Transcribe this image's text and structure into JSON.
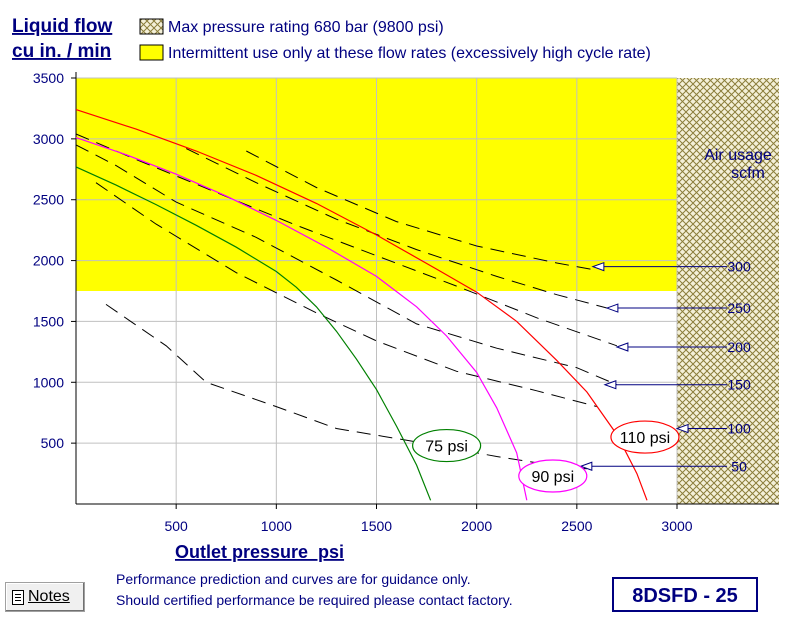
{
  "header": {
    "ylabel_line1": "Liquid flow",
    "ylabel_line2": "cu in. / min",
    "legend_hatch": "Max pressure rating 680 bar (9800 psi)",
    "legend_yellow": "Intermittent use only at these flow rates (excessively high cycle rate)"
  },
  "footer": {
    "xlabel": "Outlet pressure  psi",
    "note_line1": "Performance prediction and curves are for guidance only.",
    "note_line2": "Should certified performance be required please contact factory.",
    "model": "8DSFD - 25",
    "notes_button": "Notes"
  },
  "air_usage": {
    "label_line1": "Air usage",
    "label_line2": "scfm"
  },
  "colors": {
    "grid": "#c0c0c0",
    "yellow_zone": "#ffff00",
    "hatch": "#8b7d3a",
    "air_line": "#000080",
    "label_blue": "#000080",
    "curve_75": "#008000",
    "curve_90": "#ff00ff",
    "curve_110": "#ff0000",
    "dashed": "#000000"
  },
  "chart_data": {
    "type": "line",
    "xlim": [
      0,
      3500
    ],
    "ylim": [
      0,
      3500
    ],
    "x_ticks": [
      500,
      1000,
      1500,
      2000,
      2500,
      3000
    ],
    "y_ticks": [
      500,
      1000,
      1500,
      2000,
      2500,
      3000,
      3500
    ],
    "grid": true,
    "intermittent_zone": {
      "y_min": 1750,
      "y_max": 3500,
      "x_max": 3000
    },
    "max_pressure_zone": {
      "x_min": 3000,
      "x_max": 3500
    },
    "air_pressure_curves": [
      {
        "name": "75 psi",
        "color": "#008000",
        "label_at": [
          1850,
          480
        ],
        "points": [
          [
            0,
            2770
          ],
          [
            200,
            2620
          ],
          [
            400,
            2460
          ],
          [
            600,
            2290
          ],
          [
            800,
            2110
          ],
          [
            1000,
            1910
          ],
          [
            1100,
            1780
          ],
          [
            1200,
            1620
          ],
          [
            1300,
            1420
          ],
          [
            1400,
            1190
          ],
          [
            1500,
            940
          ],
          [
            1600,
            640
          ],
          [
            1700,
            320
          ],
          [
            1770,
            30
          ]
        ]
      },
      {
        "name": "90 psi",
        "color": "#ff00ff",
        "label_at": [
          2380,
          230
        ],
        "points": [
          [
            0,
            3010
          ],
          [
            250,
            2870
          ],
          [
            500,
            2710
          ],
          [
            750,
            2530
          ],
          [
            1000,
            2330
          ],
          [
            1250,
            2110
          ],
          [
            1500,
            1870
          ],
          [
            1700,
            1620
          ],
          [
            1850,
            1380
          ],
          [
            2000,
            1080
          ],
          [
            2100,
            790
          ],
          [
            2200,
            420
          ],
          [
            2250,
            30
          ]
        ]
      },
      {
        "name": "110 psi",
        "color": "#ff0000",
        "label_at": [
          2840,
          550
        ],
        "points": [
          [
            0,
            3240
          ],
          [
            300,
            3080
          ],
          [
            600,
            2900
          ],
          [
            900,
            2700
          ],
          [
            1200,
            2470
          ],
          [
            1500,
            2210
          ],
          [
            1800,
            1930
          ],
          [
            2000,
            1740
          ],
          [
            2200,
            1500
          ],
          [
            2400,
            1180
          ],
          [
            2550,
            920
          ],
          [
            2700,
            570
          ],
          [
            2800,
            250
          ],
          [
            2850,
            30
          ]
        ]
      }
    ],
    "air_usage_curves": [
      {
        "name": "300",
        "points": [
          [
            850,
            2900
          ],
          [
            1200,
            2600
          ],
          [
            1600,
            2320
          ],
          [
            2000,
            2120
          ],
          [
            2400,
            1980
          ],
          [
            2600,
            1920
          ]
        ]
      },
      {
        "name": "250",
        "points": [
          [
            550,
            2920
          ],
          [
            900,
            2640
          ],
          [
            1300,
            2340
          ],
          [
            1700,
            2090
          ],
          [
            2100,
            1870
          ],
          [
            2400,
            1720
          ],
          [
            2650,
            1610
          ]
        ]
      },
      {
        "name": "200",
        "points": [
          [
            0,
            3040
          ],
          [
            300,
            2830
          ],
          [
            700,
            2560
          ],
          [
            1100,
            2290
          ],
          [
            1500,
            2040
          ],
          [
            1900,
            1790
          ],
          [
            2300,
            1530
          ],
          [
            2700,
            1300
          ]
        ]
      },
      {
        "name": "150",
        "points": [
          [
            0,
            2950
          ],
          [
            200,
            2780
          ],
          [
            500,
            2480
          ],
          [
            900,
            2190
          ],
          [
            1300,
            1840
          ],
          [
            1700,
            1480
          ],
          [
            2100,
            1280
          ],
          [
            2500,
            1120
          ],
          [
            2700,
            980
          ]
        ]
      },
      {
        "name": "100",
        "points": [
          [
            100,
            2640
          ],
          [
            400,
            2300
          ],
          [
            800,
            1900
          ],
          [
            1200,
            1570
          ],
          [
            1500,
            1340
          ],
          [
            1900,
            1090
          ],
          [
            2300,
            930
          ],
          [
            2600,
            800
          ]
        ]
      },
      {
        "name": "50",
        "points": [
          [
            150,
            1640
          ],
          [
            450,
            1300
          ],
          [
            650,
            1000
          ],
          [
            1000,
            800
          ],
          [
            1300,
            620
          ],
          [
            1700,
            510
          ],
          [
            2100,
            390
          ],
          [
            2450,
            300
          ],
          [
            2550,
            290
          ]
        ]
      }
    ],
    "air_usage_leaders": [
      {
        "name": "300",
        "from_x": 3250,
        "to": [
          2580,
          1950
        ]
      },
      {
        "name": "250",
        "from_x": 3250,
        "to": [
          2650,
          1610
        ]
      },
      {
        "name": "200",
        "from_x": 3250,
        "to": [
          2700,
          1290
        ]
      },
      {
        "name": "150",
        "from_x": 3250,
        "to": [
          2640,
          980
        ]
      },
      {
        "name": "100",
        "from_x": 3250,
        "to": [
          3000,
          620
        ]
      },
      {
        "name": "50",
        "from_x": 3250,
        "to": [
          2520,
          310
        ]
      }
    ]
  }
}
